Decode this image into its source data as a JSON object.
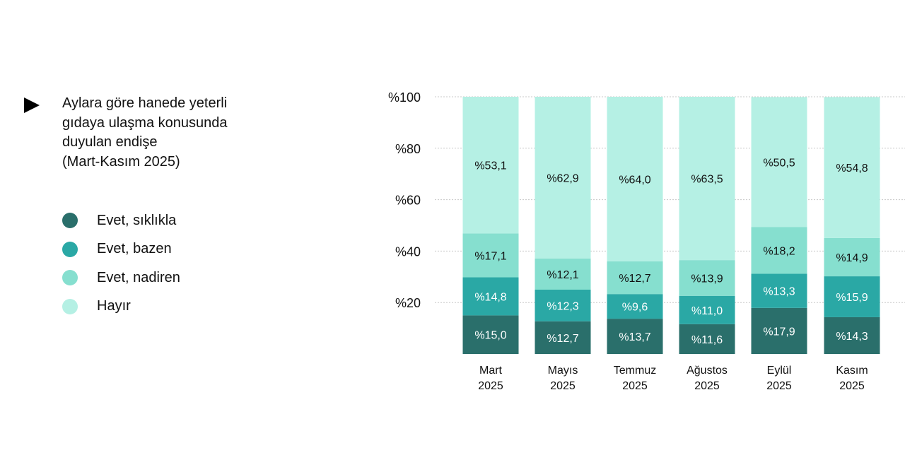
{
  "chart_data": {
    "type": "bar",
    "stacked": true,
    "title": "Aylara göre hanede yeterli gıdaya ulaşma konusunda duyulan endişe (Mart-Kasım 2025)",
    "title_lines": [
      "Aylara göre hanede yeterli",
      "gıdaya ulaşma konusunda",
      "duyulan endişe",
      "(Mart-Kasım 2025)"
    ],
    "categories": [
      [
        "Mart",
        "2025"
      ],
      [
        "Mayıs",
        "2025"
      ],
      [
        "Temmuz",
        "2025"
      ],
      [
        "Ağustos",
        "2025"
      ],
      [
        "Eylül",
        "2025"
      ],
      [
        "Kasım",
        "2025"
      ]
    ],
    "series": [
      {
        "name": "Evet, sıklıkla",
        "color": "#2a6f6b",
        "label_color": "#ffffff",
        "values": [
          15.0,
          12.7,
          13.7,
          11.6,
          17.9,
          14.3
        ],
        "labels": [
          "%15,0",
          "%12,7",
          "%13,7",
          "%11,6",
          "%17,9",
          "%14,3"
        ]
      },
      {
        "name": "Evet, bazen",
        "color": "#2aa8a5",
        "label_color": "#ffffff",
        "values": [
          14.8,
          12.3,
          9.6,
          11.0,
          13.3,
          15.9
        ],
        "labels": [
          "%14,8",
          "%12,3",
          "%9,6",
          "%11,0",
          "%13,3",
          "%15,9"
        ]
      },
      {
        "name": "Evet, nadiren",
        "color": "#86dfcf",
        "label_color": "#111111",
        "values": [
          17.1,
          12.1,
          12.7,
          13.9,
          18.2,
          14.9
        ],
        "labels": [
          "%17,1",
          "%12,1",
          "%12,7",
          "%13,9",
          "%18,2",
          "%14,9"
        ]
      },
      {
        "name": "Hayır",
        "color": "#b5f0e4",
        "label_color": "#111111",
        "values": [
          53.1,
          62.9,
          64.0,
          63.5,
          50.5,
          54.8
        ],
        "labels": [
          "%53,1",
          "%62,9",
          "%64,0",
          "%63,5",
          "%50,5",
          "%54,8"
        ]
      }
    ],
    "yticks": [
      20,
      40,
      60,
      80,
      100
    ],
    "ytick_labels": [
      "%20",
      "%40",
      "%60",
      "%80",
      "%100"
    ],
    "ylim": [
      0,
      100
    ],
    "grid": true,
    "legend_position": "left"
  }
}
